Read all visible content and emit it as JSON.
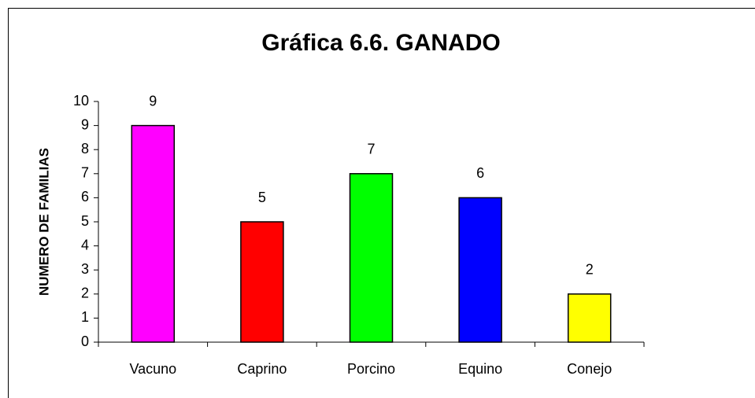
{
  "chart_data": {
    "type": "bar",
    "title": "Gráfica 6.6. GANADO",
    "y_label": "NUMERO DE FAMILIAS",
    "categories": [
      "Vacuno",
      "Caprino",
      "Porcino",
      "Equino",
      "Conejo"
    ],
    "values": [
      9,
      5,
      7,
      6,
      2
    ],
    "colors": [
      "#ff00ff",
      "#ff0000",
      "#00ff00",
      "#0000ff",
      "#ffff00"
    ],
    "ylim": [
      0,
      10
    ],
    "yticks": [
      0,
      1,
      2,
      3,
      4,
      5,
      6,
      7,
      8,
      9,
      10
    ],
    "grid": false
  }
}
